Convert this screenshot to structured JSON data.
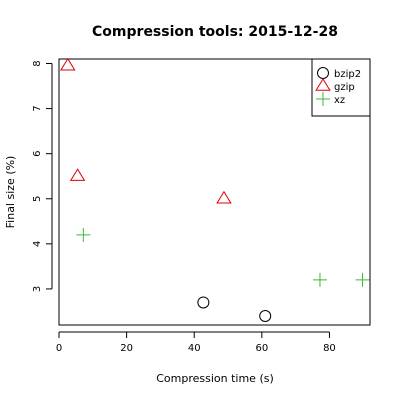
{
  "chart_data": {
    "type": "scatter",
    "title": "Compression tools: 2015-12-28",
    "xlabel": "Compression time (s)",
    "ylabel": "Final size (%)",
    "xlim": [
      0,
      92
    ],
    "ylim": [
      2.2,
      8.1
    ],
    "xticks": [
      0,
      20,
      40,
      60,
      80
    ],
    "yticks": [
      3,
      4,
      5,
      6,
      7,
      8
    ],
    "grid": false,
    "legend_position": "top-right",
    "series": [
      {
        "name": "bzip2",
        "marker": "circle",
        "color": "#000000",
        "points": [
          {
            "x": 42.7,
            "y": 2.7
          },
          {
            "x": 61.0,
            "y": 2.4
          }
        ]
      },
      {
        "name": "gzip",
        "marker": "triangle",
        "color": "#df0000",
        "points": [
          {
            "x": 2.6,
            "y": 7.95
          },
          {
            "x": 5.5,
            "y": 5.5
          },
          {
            "x": 48.8,
            "y": 5.0
          }
        ]
      },
      {
        "name": "xz",
        "marker": "plus",
        "color": "#3cb93c",
        "points": [
          {
            "x": 7.2,
            "y": 4.2
          },
          {
            "x": 77.2,
            "y": 3.2
          },
          {
            "x": 89.8,
            "y": 3.2
          }
        ]
      }
    ]
  }
}
